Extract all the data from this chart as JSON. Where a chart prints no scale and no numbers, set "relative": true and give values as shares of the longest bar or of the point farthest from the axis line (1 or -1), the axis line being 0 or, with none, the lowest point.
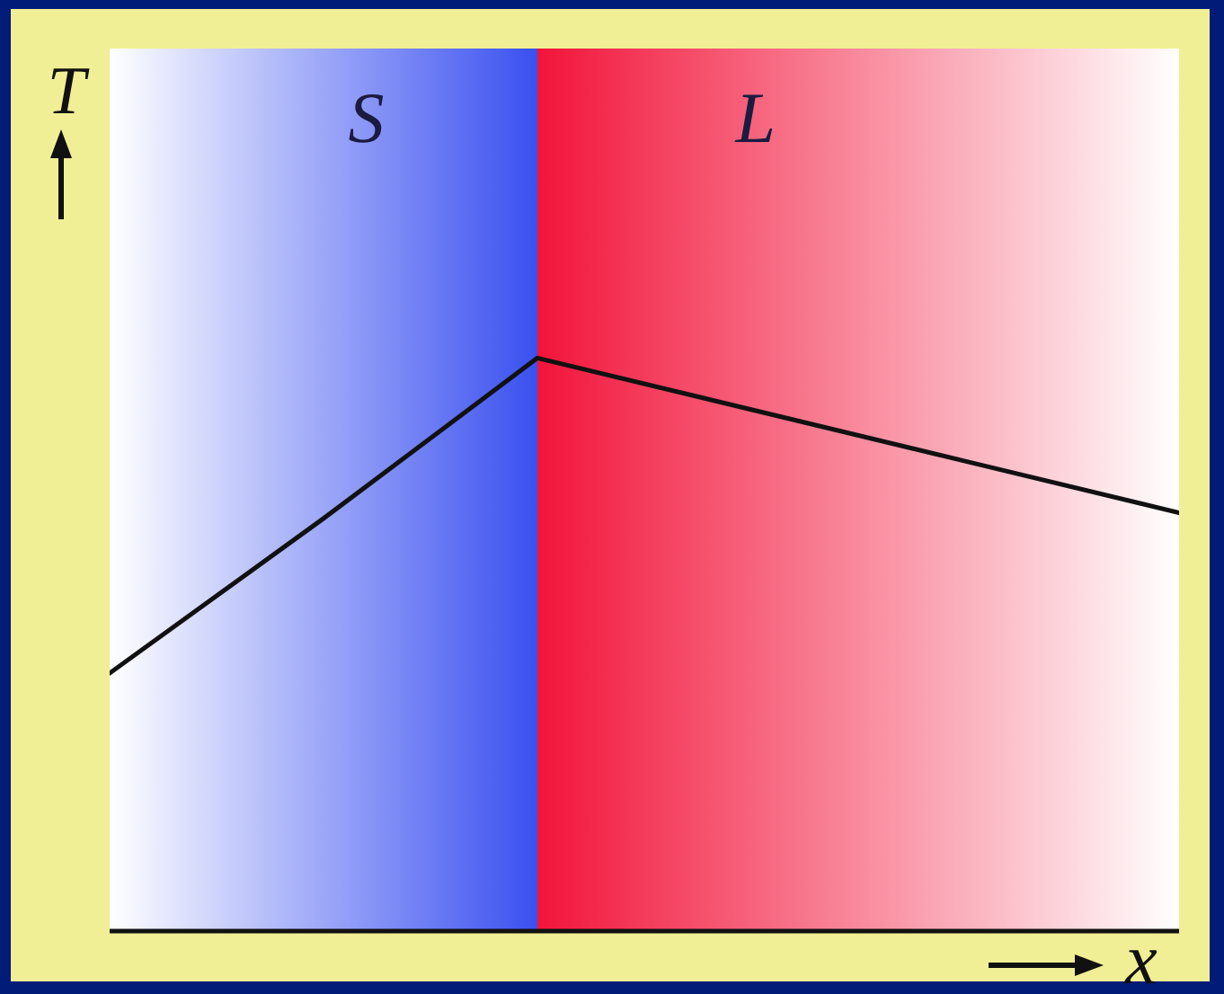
{
  "chart_data": {
    "type": "line",
    "relative": true,
    "xlabel": "x",
    "ylabel": "T",
    "categories": [
      null,
      null,
      null,
      null,
      null,
      null
    ],
    "series": [
      {
        "color": "#111111",
        "values": [
          0.45,
          0.72,
          1,
          0.91,
          0.82,
          0.73
        ]
      }
    ],
    "annotations": [
      "S",
      "L"
    ],
    "line_style": "solid"
  }
}
